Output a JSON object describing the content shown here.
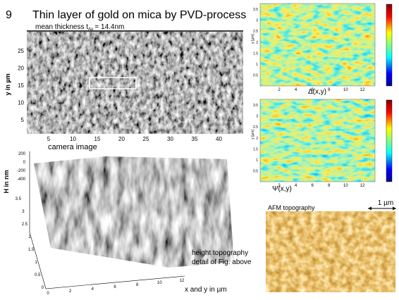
{
  "header": {
    "number": "9",
    "title": "Thin layer of gold on mica by PVD-process"
  },
  "camera": {
    "subtitle": {
      "text": "mean thickness t",
      "subscript": "Au",
      "rest": "= 14.4nm"
    },
    "y_label": "y in µm",
    "y_ticks": [
      "5",
      "10",
      "15",
      "20",
      "25"
    ],
    "x_ticks": [
      "5",
      "10",
      "15",
      "20",
      "25",
      "30",
      "35",
      "40"
    ],
    "caption": "camera image"
  },
  "topography": {
    "z_label": "H in nm",
    "z_ticks": [
      "200",
      "0",
      "-200",
      "-400"
    ],
    "y_ticks": [
      "3.5",
      "3",
      "2.5",
      "2",
      "1.5",
      "1",
      "0.5",
      "0"
    ],
    "x_ticks": [
      "0",
      "2",
      "4",
      "6",
      "8",
      "10",
      "12"
    ],
    "caption": [
      "height topography",
      "detail of Fig. above"
    ],
    "x_label": "x and y in µm"
  },
  "afm_maps": [
    {
      "caption": "Δ(x,y)",
      "y_label": "y [µm]",
      "y_ticks": [
        "3.5",
        "3",
        "2.5",
        "2",
        "1.5",
        "1",
        "0.5"
      ],
      "x_ticks": [
        "2",
        "4",
        "6",
        "8",
        "10",
        "12"
      ]
    },
    {
      "caption": "Ψ(x,y)",
      "y_label": "y [µm]",
      "y_ticks": [
        "3.5",
        "3",
        "2.5",
        "2",
        "1.5",
        "1",
        "0.5"
      ],
      "x_ticks": [
        "2",
        "4",
        "6",
        "8",
        "10",
        "12"
      ]
    }
  ],
  "afm": {
    "title": "AFM topography",
    "scale": "1 µm"
  }
}
